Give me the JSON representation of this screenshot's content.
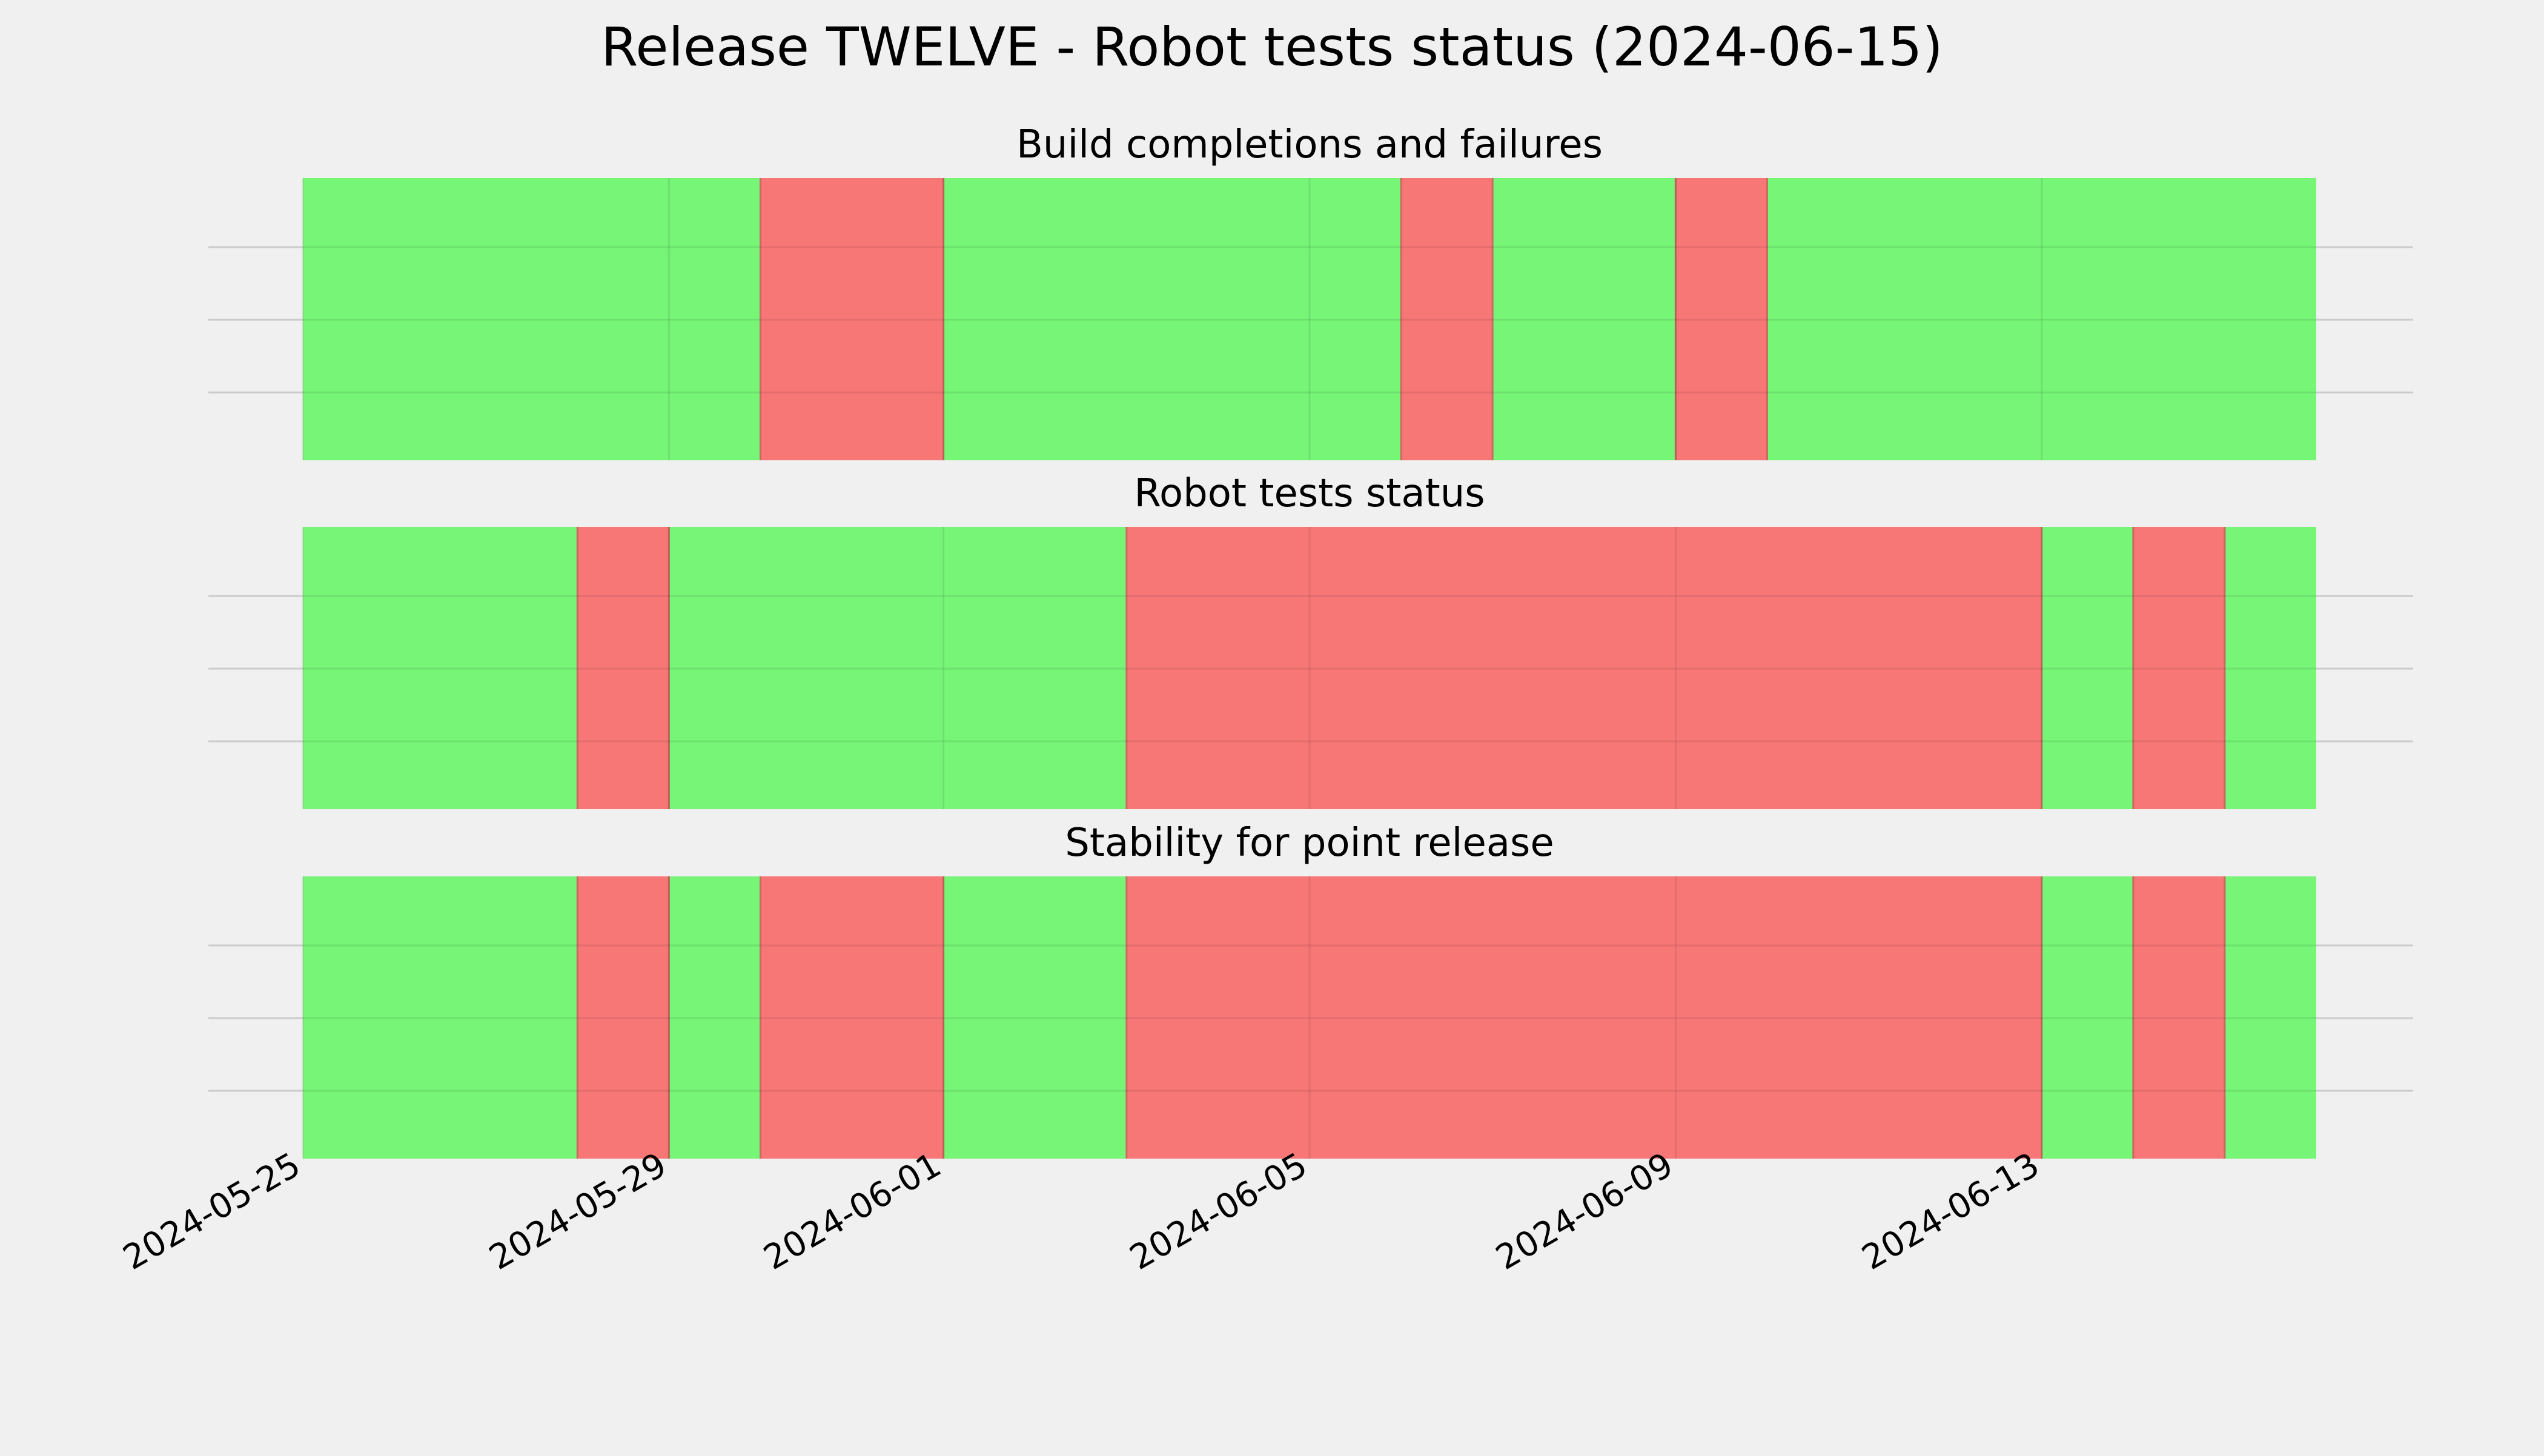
{
  "title": "Release TWELVE - Robot tests status (2024-06-15)",
  "colors": {
    "background": "#f0f0f0",
    "pass": "#77f577",
    "fail": "#f77777",
    "grid": "#cbcbcb"
  },
  "chart_data": {
    "type": "timeline",
    "x_axis": {
      "type": "date",
      "range": [
        "2024-05-25",
        "2024-06-16"
      ],
      "ticks": [
        "2024-05-25",
        "2024-05-29",
        "2024-06-01",
        "2024-06-05",
        "2024-06-09",
        "2024-06-13"
      ],
      "grid": true,
      "tick_label_rotation": 30
    },
    "y_axis": {
      "tick_labels": false,
      "grid": true
    },
    "panels": [
      {
        "title": "Build completions and failures",
        "segments": [
          {
            "start": "2024-05-25",
            "end": "2024-05-30",
            "status": "pass"
          },
          {
            "start": "2024-05-30",
            "end": "2024-06-01",
            "status": "fail"
          },
          {
            "start": "2024-06-01",
            "end": "2024-06-06",
            "status": "pass"
          },
          {
            "start": "2024-06-06",
            "end": "2024-06-07",
            "status": "fail"
          },
          {
            "start": "2024-06-07",
            "end": "2024-06-09",
            "status": "pass"
          },
          {
            "start": "2024-06-09",
            "end": "2024-06-10",
            "status": "fail"
          },
          {
            "start": "2024-06-10",
            "end": "2024-06-16",
            "status": "pass"
          }
        ]
      },
      {
        "title": "Robot tests status",
        "segments": [
          {
            "start": "2024-05-25",
            "end": "2024-05-28",
            "status": "pass"
          },
          {
            "start": "2024-05-28",
            "end": "2024-05-29",
            "status": "fail"
          },
          {
            "start": "2024-05-29",
            "end": "2024-06-03",
            "status": "pass"
          },
          {
            "start": "2024-06-03",
            "end": "2024-06-13",
            "status": "fail"
          },
          {
            "start": "2024-06-13",
            "end": "2024-06-14",
            "status": "pass"
          },
          {
            "start": "2024-06-14",
            "end": "2024-06-15",
            "status": "fail"
          },
          {
            "start": "2024-06-15",
            "end": "2024-06-16",
            "status": "pass"
          }
        ]
      },
      {
        "title": "Stability for point release",
        "segments": [
          {
            "start": "2024-05-25",
            "end": "2024-05-28",
            "status": "pass"
          },
          {
            "start": "2024-05-28",
            "end": "2024-05-29",
            "status": "fail"
          },
          {
            "start": "2024-05-29",
            "end": "2024-05-30",
            "status": "pass"
          },
          {
            "start": "2024-05-30",
            "end": "2024-06-01",
            "status": "fail"
          },
          {
            "start": "2024-06-01",
            "end": "2024-06-03",
            "status": "pass"
          },
          {
            "start": "2024-06-03",
            "end": "2024-06-13",
            "status": "fail"
          },
          {
            "start": "2024-06-13",
            "end": "2024-06-14",
            "status": "pass"
          },
          {
            "start": "2024-06-14",
            "end": "2024-06-15",
            "status": "fail"
          },
          {
            "start": "2024-06-15",
            "end": "2024-06-16",
            "status": "pass"
          }
        ]
      }
    ]
  }
}
